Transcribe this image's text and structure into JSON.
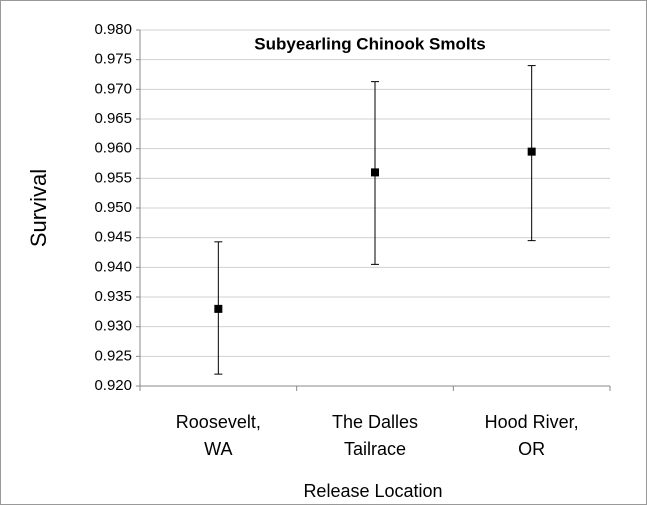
{
  "chart_data": {
    "type": "errorbar",
    "title": "Subyearling Chinook Smolts",
    "y_label": "Survival",
    "x_label": "Release Location",
    "categories": [
      [
        "Roosevelt,",
        "WA"
      ],
      [
        "The Dalles",
        "Tailrace"
      ],
      [
        "Hood River,",
        "OR"
      ]
    ],
    "series": [
      {
        "name": "Survival",
        "color": "#000000",
        "values": [
          0.933,
          0.956,
          0.9595
        ],
        "lower": [
          0.922,
          0.9405,
          0.9445
        ],
        "upper": [
          0.9443,
          0.9713,
          0.974
        ]
      }
    ],
    "ylim": [
      0.92,
      0.98
    ],
    "yticks": [
      {
        "value": 0.92,
        "label": "0.920"
      },
      {
        "value": 0.925,
        "label": "0.925"
      },
      {
        "value": 0.93,
        "label": "0.930"
      },
      {
        "value": 0.935,
        "label": "0.935"
      },
      {
        "value": 0.94,
        "label": "0.940"
      },
      {
        "value": 0.945,
        "label": "0.945"
      },
      {
        "value": 0.95,
        "label": "0.950"
      },
      {
        "value": 0.955,
        "label": "0.955"
      },
      {
        "value": 0.96,
        "label": "0.960"
      },
      {
        "value": 0.965,
        "label": "0.965"
      },
      {
        "value": 0.97,
        "label": "0.970"
      },
      {
        "value": 0.975,
        "label": "0.975"
      },
      {
        "value": 0.98,
        "label": "0.980"
      }
    ],
    "grid": true
  }
}
